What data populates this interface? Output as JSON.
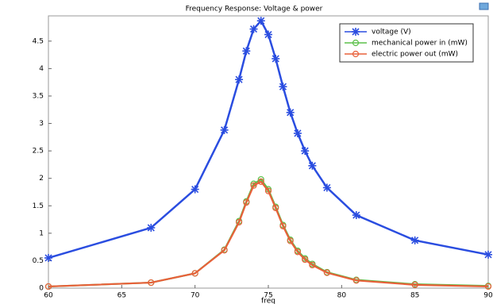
{
  "chart_data": {
    "type": "line",
    "title": "Frequency Response: Voltage & power",
    "xlabel": "freq",
    "x": [
      60,
      67,
      70,
      72,
      73,
      73.5,
      74,
      74.5,
      75,
      75.5,
      76,
      76.5,
      77,
      77.5,
      78,
      79,
      81,
      85,
      90
    ],
    "series": [
      {
        "name": "voltage (V)",
        "color": "#2a4de0",
        "marker": "asterisk",
        "values": [
          0.55,
          1.1,
          1.8,
          2.88,
          3.8,
          4.32,
          4.72,
          4.87,
          4.62,
          4.18,
          3.67,
          3.2,
          2.82,
          2.5,
          2.23,
          1.83,
          1.33,
          0.87,
          0.61
        ]
      },
      {
        "name": "mechanical power in (mW)",
        "color": "#5cc04a",
        "marker": "circle",
        "values": [
          0.03,
          0.1,
          0.27,
          0.7,
          1.22,
          1.58,
          1.9,
          1.98,
          1.8,
          1.48,
          1.15,
          0.88,
          0.68,
          0.54,
          0.44,
          0.29,
          0.15,
          0.07,
          0.04
        ]
      },
      {
        "name": "electric power out (mW)",
        "color": "#e8603a",
        "marker": "circle",
        "values": [
          0.03,
          0.1,
          0.27,
          0.69,
          1.2,
          1.56,
          1.87,
          1.94,
          1.77,
          1.46,
          1.13,
          0.86,
          0.66,
          0.52,
          0.42,
          0.28,
          0.14,
          0.06,
          0.03
        ]
      }
    ],
    "xlim": [
      60,
      90
    ],
    "xticks": [
      60,
      65,
      70,
      75,
      80,
      85,
      90
    ],
    "ylim": [
      0,
      4.96
    ],
    "yticks": [
      0,
      0.5,
      1,
      1.5,
      2,
      2.5,
      3,
      3.5,
      4,
      4.5
    ],
    "grid": false,
    "legend": "upper right"
  }
}
